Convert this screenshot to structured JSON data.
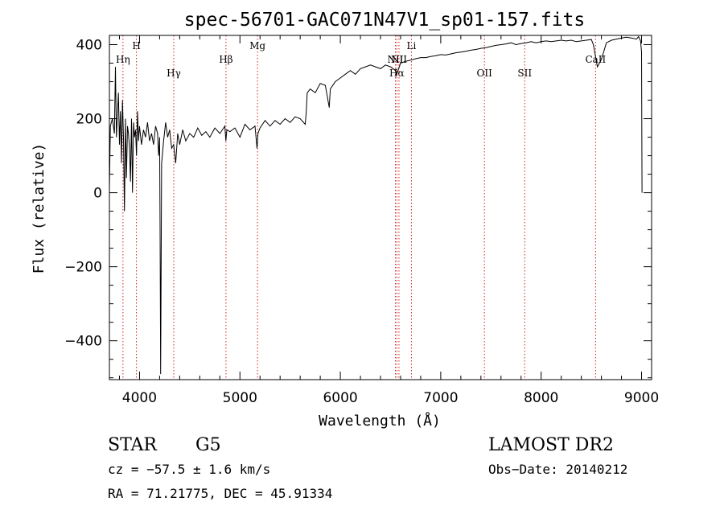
{
  "chart_data": {
    "type": "line",
    "title": "spec-56701-GAC071N47V1_sp01-157.fits",
    "xlabel": "Wavelength (Å)",
    "ylabel": "Flux (relative)",
    "xlim": [
      3700,
      9100
    ],
    "ylim": [
      -505,
      425
    ],
    "x_ticks": [
      {
        "value": 4000,
        "label": "4000"
      },
      {
        "value": 5000,
        "label": "5000"
      },
      {
        "value": 6000,
        "label": "6000"
      },
      {
        "value": 7000,
        "label": "7000"
      },
      {
        "value": 8000,
        "label": "8000"
      },
      {
        "value": 9000,
        "label": "9000"
      }
    ],
    "y_ticks": [
      {
        "value": -400,
        "label": "−400"
      },
      {
        "value": -200,
        "label": "−200"
      },
      {
        "value": 0,
        "label": "0"
      },
      {
        "value": 200,
        "label": "200"
      },
      {
        "value": 400,
        "label": "400"
      }
    ],
    "grid": false,
    "line_color": "#000000",
    "marker_color": "#cc2222",
    "spectral_lines": [
      {
        "label": "Hη",
        "wavelength": 3835,
        "row": 2
      },
      {
        "label": "H",
        "wavelength": 3969,
        "row": 1
      },
      {
        "label": "Hγ",
        "wavelength": 4341,
        "row": 3
      },
      {
        "label": "Hβ",
        "wavelength": 4861,
        "row": 2
      },
      {
        "label": "Mg",
        "wavelength": 5175,
        "row": 1
      },
      {
        "label": "NII",
        "wavelength": 6548,
        "row": 2
      },
      {
        "label": "Hα",
        "wavelength": 6563,
        "row": 3
      },
      {
        "label": "NII",
        "wavelength": 6584,
        "row": 2
      },
      {
        "label": "Li",
        "wavelength": 6708,
        "row": 1
      },
      {
        "label": "OII",
        "wavelength": 7435,
        "row": 3
      },
      {
        "label": "SII",
        "wavelength": 7836,
        "row": 3
      },
      {
        "label": "CaII",
        "wavelength": 8542,
        "row": 2
      }
    ],
    "series": [
      {
        "x": [
          3700,
          3710,
          3730,
          3750,
          3760,
          3770,
          3790,
          3800,
          3810,
          3820,
          3830,
          3840,
          3850,
          3860,
          3870,
          3880,
          3890,
          3900,
          3910,
          3920,
          3930,
          3940,
          3950,
          3960,
          3970,
          3980,
          3990,
          4000,
          4020,
          4040,
          4060,
          4080,
          4100,
          4120,
          4140,
          4160,
          4180,
          4190,
          4200,
          4205,
          4210,
          4220,
          4240,
          4260,
          4280,
          4300,
          4320,
          4340,
          4360,
          4380,
          4400,
          4430,
          4460,
          4500,
          4540,
          4580,
          4620,
          4660,
          4700,
          4750,
          4800,
          4850,
          4860,
          4870,
          4900,
          4950,
          5000,
          5050,
          5100,
          5150,
          5170,
          5180,
          5200,
          5250,
          5300,
          5350,
          5400,
          5450,
          5500,
          5550,
          5600,
          5650,
          5660,
          5670,
          5700,
          5750,
          5800,
          5850,
          5890,
          5900,
          5950,
          6000,
          6050,
          6100,
          6150,
          6200,
          6250,
          6300,
          6350,
          6400,
          6450,
          6500,
          6550,
          6563,
          6580,
          6600,
          6650,
          6700,
          6750,
          6800,
          6850,
          6900,
          6950,
          7000,
          7050,
          7100,
          7150,
          7200,
          7250,
          7300,
          7350,
          7400,
          7450,
          7500,
          7550,
          7600,
          7650,
          7700,
          7750,
          7800,
          7850,
          7900,
          7950,
          8000,
          8050,
          8100,
          8150,
          8200,
          8250,
          8300,
          8350,
          8400,
          8450,
          8500,
          8520,
          8540,
          8560,
          8600,
          8650,
          8700,
          8750,
          8800,
          8850,
          8900,
          8950,
          8970,
          8990,
          9000,
          9005
        ],
        "y": [
          10,
          180,
          200,
          160,
          340,
          150,
          270,
          130,
          220,
          80,
          250,
          150,
          -50,
          200,
          40,
          180,
          160,
          120,
          30,
          200,
          0,
          190,
          150,
          170,
          100,
          220,
          140,
          180,
          130,
          170,
          150,
          190,
          140,
          160,
          130,
          180,
          160,
          100,
          150,
          -100,
          -490,
          80,
          140,
          190,
          150,
          170,
          120,
          130,
          80,
          160,
          130,
          170,
          140,
          160,
          150,
          175,
          155,
          165,
          150,
          175,
          160,
          180,
          140,
          170,
          165,
          175,
          150,
          185,
          170,
          180,
          120,
          160,
          175,
          195,
          180,
          195,
          185,
          200,
          190,
          205,
          200,
          185,
          215,
          270,
          280,
          270,
          295,
          290,
          230,
          280,
          300,
          310,
          320,
          330,
          320,
          335,
          340,
          345,
          340,
          335,
          345,
          340,
          330,
          320,
          335,
          350,
          355,
          358,
          362,
          365,
          365,
          368,
          370,
          373,
          372,
          375,
          378,
          380,
          382,
          385,
          387,
          390,
          392,
          395,
          398,
          400,
          402,
          405,
          400,
          403,
          405,
          408,
          405,
          408,
          410,
          408,
          410,
          412,
          410,
          412,
          408,
          410,
          412,
          414,
          400,
          370,
          340,
          360,
          405,
          412,
          415,
          418,
          420,
          418,
          415,
          422,
          410,
          380,
          0
        ]
      }
    ]
  },
  "info": {
    "object_class": "STAR",
    "subclass": "G5",
    "survey": "LAMOST DR2",
    "cz": "cz = −57.5 ± 1.6 km/s",
    "obs_date": "Obs−Date: 20140212",
    "radec": "RA =  71.21775, DEC =  45.91334"
  }
}
